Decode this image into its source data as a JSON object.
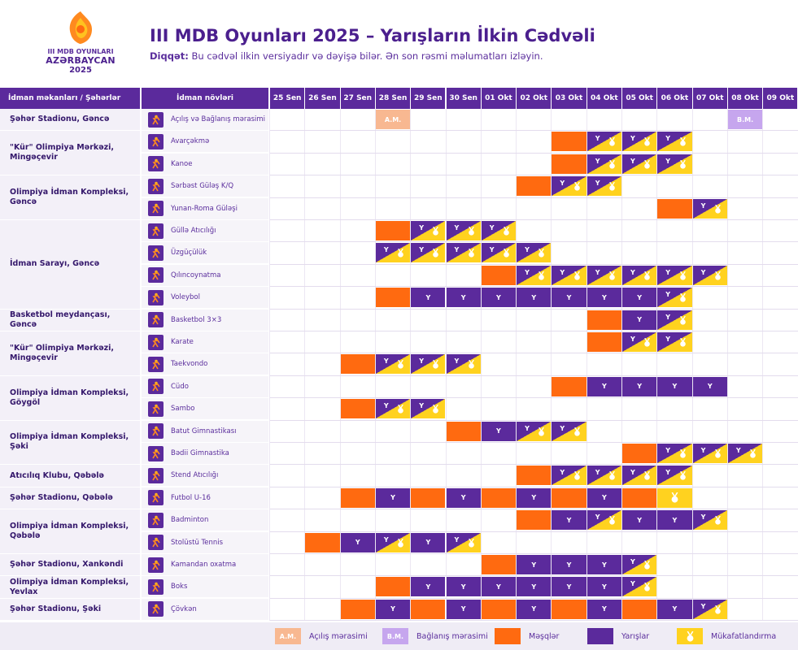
{
  "header": {
    "logo": {
      "line1": "III MDB OYUNLARI",
      "line2": "AZƏRBAYCAN",
      "line3": "2025"
    },
    "title": "III MDB Oyunları 2025 – Yarışların İlkin Cədvəli",
    "notice_label": "Diqqət:",
    "notice_text": " Bu cədvəl ilkin versiyadır və dəyişə bilər. Ən son rəsmi məlumatları izləyin."
  },
  "table": {
    "col_venue_header": "İdman məkanları / Şəhərlər",
    "col_sport_header": "İdman növləri",
    "dates": [
      "25 Sen",
      "26 Sen",
      "27 Sen",
      "28 Sen",
      "29 Sen",
      "30 Sen",
      "01 Okt",
      "02 Okt",
      "03 Okt",
      "04 Okt",
      "05 Okt",
      "06 Okt",
      "07 Okt",
      "08 Okt",
      "09 Okt"
    ],
    "venues": [
      {
        "name": "Şəhər Stadionu, Gəncə",
        "rows": 1
      },
      {
        "name": "\"Kür\" Olimpiya Mərkəzi, Mingəçevir",
        "rows": 2
      },
      {
        "name": "Olimpiya İdman Kompleksi, Gəncə",
        "rows": 2
      },
      {
        "name": "İdman Sarayı, Gəncə",
        "rows": 4
      },
      {
        "name": "Basketbol meydançası, Gəncə",
        "rows": 1
      },
      {
        "name": "\"Kür\" Olimpiya Mərkəzi, Mingəçevir",
        "rows": 2
      },
      {
        "name": "Olimpiya İdman Kompleksi, Göygöl",
        "rows": 2
      },
      {
        "name": "Olimpiya İdman Kompleksi, Şəki",
        "rows": 2
      },
      {
        "name": "Atıcılıq Klubu, Qəbələ",
        "rows": 1
      },
      {
        "name": "Şəhər Stadionu, Qəbələ",
        "rows": 1
      },
      {
        "name": "Olimpiya İdman Kompleksi, Qəbələ",
        "rows": 2
      },
      {
        "name": "Şəhər Stadionu, Xankəndi",
        "rows": 1
      },
      {
        "name": "Olimpiya İdman Kompleksi, Yevlax",
        "rows": 1
      },
      {
        "name": "Şəhər Stadionu, Şəki",
        "rows": 1
      }
    ],
    "sports": [
      {
        "name": "Açılış və Bağlanış mərasimi",
        "icon": "ceremony-icon",
        "cells": [
          "",
          "",
          "",
          "AM",
          "",
          "",
          "",
          "",
          "",
          "",
          "",
          "",
          "",
          "BM",
          ""
        ]
      },
      {
        "name": "Avarçəkmə",
        "icon": "rowing-icon",
        "cells": [
          "",
          "",
          "",
          "",
          "",
          "",
          "",
          "",
          "M",
          "YK",
          "YK",
          "YK",
          "",
          "",
          ""
        ]
      },
      {
        "name": "Kanoe",
        "icon": "canoe-icon",
        "cells": [
          "",
          "",
          "",
          "",
          "",
          "",
          "",
          "",
          "M",
          "YK",
          "YK",
          "YK",
          "",
          "",
          ""
        ]
      },
      {
        "name": "Sərbəst Güləş K/Q",
        "icon": "wrestling-icon",
        "cells": [
          "",
          "",
          "",
          "",
          "",
          "",
          "",
          "M",
          "YK",
          "YK",
          "",
          "",
          "",
          "",
          ""
        ]
      },
      {
        "name": "Yunan-Roma Güləşi",
        "icon": "wrestling-icon",
        "cells": [
          "",
          "",
          "",
          "",
          "",
          "",
          "",
          "",
          "",
          "",
          "",
          "M",
          "YK",
          "",
          ""
        ]
      },
      {
        "name": "Güllə Atıcılığı",
        "icon": "shooting-icon",
        "cells": [
          "",
          "",
          "",
          "M",
          "YK",
          "YK",
          "YK",
          "",
          "",
          "",
          "",
          "",
          "",
          "",
          ""
        ]
      },
      {
        "name": "Üzgüçülük",
        "icon": "swimming-icon",
        "cells": [
          "",
          "",
          "",
          "YK",
          "YK",
          "YK",
          "YK",
          "YK",
          "",
          "",
          "",
          "",
          "",
          "",
          ""
        ]
      },
      {
        "name": "Qılıncoynatma",
        "icon": "fencing-icon",
        "cells": [
          "",
          "",
          "",
          "",
          "",
          "",
          "M",
          "YK",
          "YK",
          "YK",
          "YK",
          "YK",
          "YK",
          "",
          ""
        ]
      },
      {
        "name": "Voleybol",
        "icon": "volleyball-icon",
        "cells": [
          "",
          "",
          "",
          "M",
          "Y",
          "Y",
          "Y",
          "Y",
          "Y",
          "Y",
          "Y",
          "YK",
          "",
          "",
          ""
        ]
      },
      {
        "name": "Basketbol 3×3",
        "icon": "basketball-icon",
        "cells": [
          "",
          "",
          "",
          "",
          "",
          "",
          "",
          "",
          "",
          "M",
          "Y",
          "YK",
          "",
          "",
          ""
        ]
      },
      {
        "name": "Karate",
        "icon": "karate-icon",
        "cells": [
          "",
          "",
          "",
          "",
          "",
          "",
          "",
          "",
          "",
          "M",
          "YK",
          "YK",
          "",
          "",
          ""
        ]
      },
      {
        "name": "Taekvondo",
        "icon": "taekwondo-icon",
        "cells": [
          "",
          "",
          "M",
          "YK",
          "YK",
          "YK",
          "",
          "",
          "",
          "",
          "",
          "",
          "",
          "",
          ""
        ]
      },
      {
        "name": "Cüdo",
        "icon": "judo-icon",
        "cells": [
          "",
          "",
          "",
          "",
          "",
          "",
          "",
          "",
          "M",
          "Y",
          "Y",
          "Y",
          "Y",
          "",
          ""
        ]
      },
      {
        "name": "Sambo",
        "icon": "sambo-icon",
        "cells": [
          "",
          "",
          "M",
          "YK",
          "YK",
          "",
          "",
          "",
          "",
          "",
          "",
          "",
          "",
          "",
          ""
        ]
      },
      {
        "name": "Batut Gimnastikası",
        "icon": "trampoline-icon",
        "cells": [
          "",
          "",
          "",
          "",
          "",
          "M",
          "Y",
          "YK",
          "YK",
          "",
          "",
          "",
          "",
          "",
          ""
        ]
      },
      {
        "name": "Bədii Gimnastika",
        "icon": "gymnastics-icon",
        "cells": [
          "",
          "",
          "",
          "",
          "",
          "",
          "",
          "",
          "",
          "",
          "M",
          "YK",
          "YK",
          "YK",
          ""
        ]
      },
      {
        "name": "Stend Atıcılığı",
        "icon": "skeet-icon",
        "cells": [
          "",
          "",
          "",
          "",
          "",
          "",
          "",
          "M",
          "YK",
          "YK",
          "YK",
          "YK",
          "",
          "",
          ""
        ]
      },
      {
        "name": "Futbol U-16",
        "icon": "football-icon",
        "cells": [
          "",
          "",
          "M",
          "Y",
          "M",
          "Y",
          "M",
          "Y",
          "M",
          "Y",
          "M",
          "K",
          "",
          "",
          ""
        ]
      },
      {
        "name": "Badminton",
        "icon": "badminton-icon",
        "cells": [
          "",
          "",
          "",
          "",
          "",
          "",
          "",
          "M",
          "Y",
          "YK",
          "Y",
          "Y",
          "YK",
          "",
          ""
        ]
      },
      {
        "name": "Stolüstü Tennis",
        "icon": "tabletennis-icon",
        "cells": [
          "",
          "M",
          "Y",
          "YK",
          "Y",
          "YK",
          "",
          "",
          "",
          "",
          "",
          "",
          "",
          "",
          ""
        ]
      },
      {
        "name": "Kamandan oxatma",
        "icon": "archery-icon",
        "cells": [
          "",
          "",
          "",
          "",
          "",
          "",
          "M",
          "Y",
          "Y",
          "Y",
          "YK",
          "",
          "",
          "",
          ""
        ]
      },
      {
        "name": "Boks",
        "icon": "boxing-icon",
        "cells": [
          "",
          "",
          "",
          "M",
          "Y",
          "Y",
          "Y",
          "Y",
          "Y",
          "Y",
          "YK",
          "",
          "",
          "",
          ""
        ]
      },
      {
        "name": "Çövkən",
        "icon": "chovgan-icon",
        "cells": [
          "",
          "",
          "M",
          "Y",
          "M",
          "Y",
          "M",
          "Y",
          "M",
          "Y",
          "M",
          "Y",
          "YK",
          "",
          ""
        ]
      }
    ],
    "cell_labels": {
      "AM": "A.M.",
      "BM": "B.M.",
      "Y": "Y"
    }
  },
  "legend": [
    {
      "key": "AM",
      "swatch_text": "A.M.",
      "label": "Açılış mərasimi"
    },
    {
      "key": "BM",
      "swatch_text": "B.M.",
      "label": "Bağlanış mərasimi"
    },
    {
      "key": "M",
      "swatch_text": "",
      "label": "Məşqlər"
    },
    {
      "key": "Y",
      "swatch_text": "",
      "label": "Yarışlar"
    },
    {
      "key": "K",
      "swatch_text": "",
      "label": "Mükafatlandırma"
    }
  ],
  "colors": {
    "purple": "#5b2a9c",
    "orange": "#ff6a10",
    "yellow": "#ffd21f",
    "peach": "#f8b891",
    "lilac": "#c6a6ee"
  }
}
